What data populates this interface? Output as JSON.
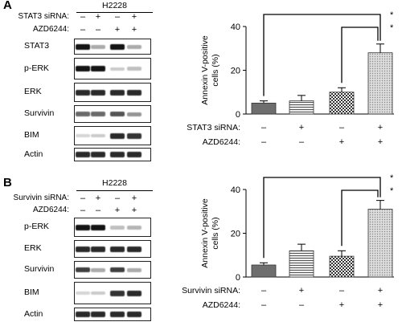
{
  "figure": {
    "panels": [
      {
        "letter": "A",
        "blot": {
          "title": "H2228",
          "conditions": [
            {
              "label": "STAT3 siRNA:",
              "signs": [
                "–",
                "+",
                "–",
                "+"
              ]
            },
            {
              "label": "AZD6244:",
              "signs": [
                "–",
                "–",
                "+",
                "+"
              ]
            }
          ],
          "rows": [
            {
              "label": "STAT3",
              "intensity": [
                1.0,
                0.3,
                1.0,
                0.3
              ]
            },
            {
              "label": "p-ERK",
              "intensity": [
                1.0,
                1.0,
                0.15,
                0.2
              ]
            },
            {
              "label": "ERK",
              "intensity": [
                0.9,
                0.9,
                0.9,
                0.9
              ]
            },
            {
              "label": "Survivin",
              "intensity": [
                0.6,
                0.6,
                0.7,
                0.4
              ]
            },
            {
              "label": "BIM",
              "intensity": [
                0.1,
                0.15,
                0.9,
                0.85
              ]
            },
            {
              "label": "Actin",
              "intensity": [
                0.9,
                0.9,
                0.9,
                0.9
              ]
            }
          ]
        }
      },
      {
        "letter": "B",
        "blot": {
          "title": "H2228",
          "conditions": [
            {
              "label": "Survivin siRNA:",
              "signs": [
                "–",
                "+",
                "–",
                "+"
              ]
            },
            {
              "label": "AZD6244:",
              "signs": [
                "–",
                "–",
                "+",
                "+"
              ]
            }
          ],
          "rows": [
            {
              "label": "p-ERK",
              "intensity": [
                1.0,
                1.0,
                0.2,
                0.25
              ]
            },
            {
              "label": "ERK",
              "intensity": [
                0.9,
                0.9,
                0.9,
                0.9
              ]
            },
            {
              "label": "Survivin",
              "intensity": [
                0.8,
                0.3,
                0.8,
                0.3
              ]
            },
            {
              "label": "BIM",
              "intensity": [
                0.1,
                0.15,
                0.85,
                0.9
              ]
            },
            {
              "label": "Actin",
              "intensity": [
                0.9,
                0.9,
                0.9,
                0.9
              ]
            }
          ]
        }
      }
    ]
  },
  "chart_data": [
    {
      "type": "bar",
      "ylabel": "Annexin V-positive cells (%)",
      "ylim": [
        0,
        40
      ],
      "yticks": [
        "0",
        "20",
        "40"
      ],
      "values": [
        5,
        6,
        10,
        28
      ],
      "errors": [
        1,
        2.5,
        2,
        4
      ],
      "fills": [
        "dark",
        "hlines",
        "checker",
        "dots"
      ],
      "conditions": [
        {
          "label": "STAT3 siRNA:",
          "signs": [
            "–",
            "+",
            "–",
            "+"
          ]
        },
        {
          "label": "AZD6244:",
          "signs": [
            "–",
            "–",
            "+",
            "+"
          ]
        }
      ],
      "significance": [
        "*",
        "*"
      ]
    },
    {
      "type": "bar",
      "ylabel": "Annexin V-positive cells (%)",
      "ylim": [
        0,
        40
      ],
      "yticks": [
        "0",
        "20",
        "40"
      ],
      "values": [
        5.5,
        12,
        9.5,
        31
      ],
      "errors": [
        1,
        3,
        2.5,
        4
      ],
      "fills": [
        "dark",
        "hlines",
        "checker",
        "dots"
      ],
      "conditions": [
        {
          "label": "Survivin siRNA:",
          "signs": [
            "–",
            "+",
            "–",
            "+"
          ]
        },
        {
          "label": "AZD6244:",
          "signs": [
            "–",
            "–",
            "+",
            "+"
          ]
        }
      ],
      "significance": [
        "*",
        "*"
      ]
    }
  ]
}
